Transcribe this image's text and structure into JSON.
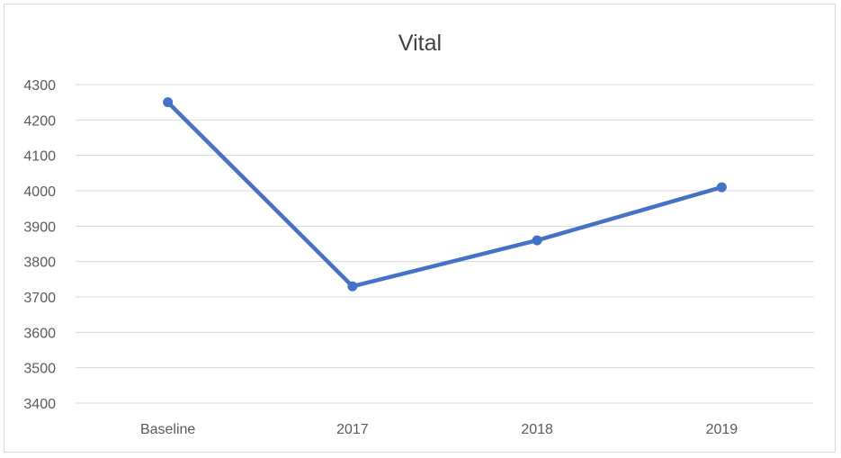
{
  "chart_data": {
    "type": "line",
    "title": "Vital",
    "xlabel": "",
    "ylabel": "",
    "categories": [
      "Baseline",
      "2017",
      "2018",
      "2019"
    ],
    "series": [
      {
        "values": [
          4250,
          3730,
          3860,
          4010
        ],
        "color": "#4472c4",
        "markers": true
      }
    ],
    "ylim": [
      3400,
      4300
    ],
    "yticks": [
      4300,
      4200,
      4100,
      4000,
      3900,
      3800,
      3700,
      3600,
      3500,
      3400
    ],
    "grid": true,
    "legend": "none"
  }
}
